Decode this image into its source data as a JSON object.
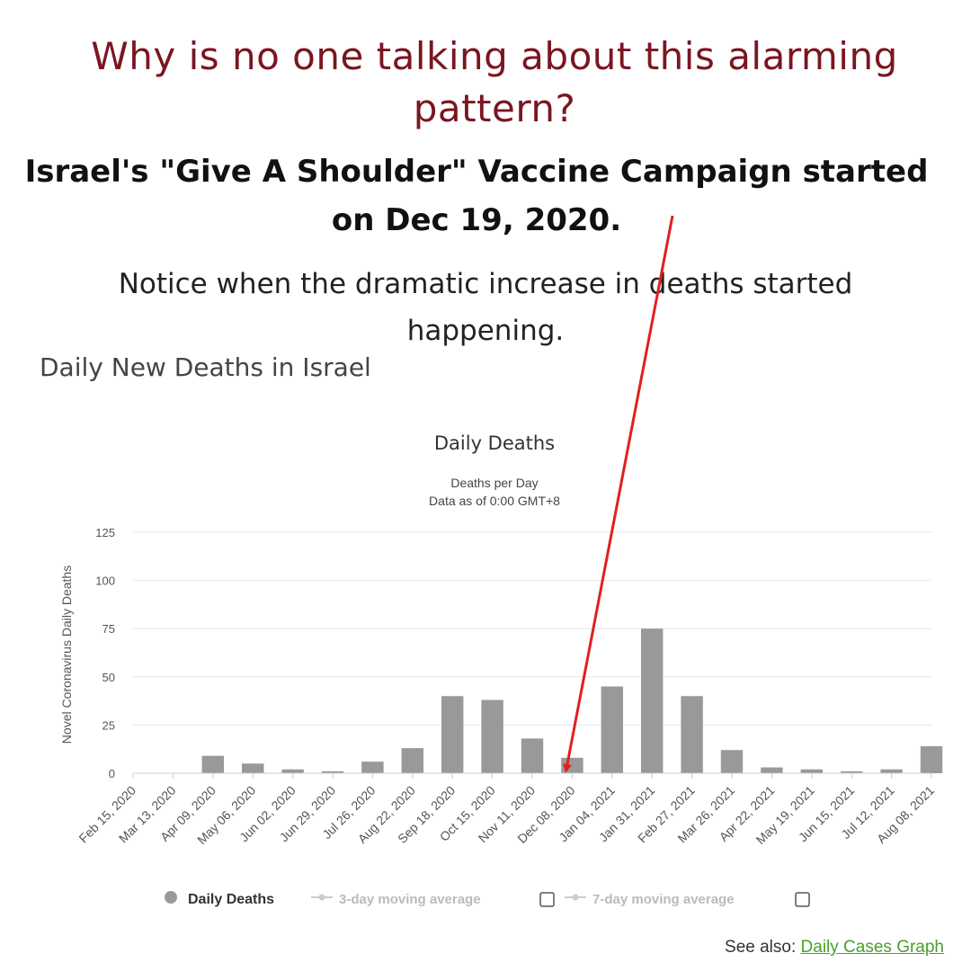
{
  "headline": "Why is no one talking about this alarming pattern?",
  "subhead": "Israel's \"Give A Shoulder\" Vaccine Campaign started on Dec 19, 2020.",
  "notice": "Notice when the dramatic increase in deaths started happening.",
  "chart_heading": "Daily New Deaths in Israel",
  "see_also": {
    "label": "See also:",
    "link_text": "Daily Cases Graph"
  },
  "colors": {
    "headline": "#7a1620",
    "bars": "#999999",
    "arrow": "#e02020",
    "link": "#4aa02c"
  },
  "chart_data": {
    "type": "bar",
    "title": "Daily Deaths",
    "subtitle": [
      "Deaths per Day",
      "Data as of 0:00 GMT+8"
    ],
    "ylabel": "Novel Coronavirus Daily Deaths",
    "xlabel": "",
    "ylim": [
      0,
      125
    ],
    "yticks": [
      0,
      25,
      50,
      75,
      100,
      125
    ],
    "x_tick_labels": [
      "Feb 15, 2020",
      "Mar 13, 2020",
      "Apr 09, 2020",
      "May 06, 2020",
      "Jun 02, 2020",
      "Jun 29, 2020",
      "Jul 26, 2020",
      "Aug 22, 2020",
      "Sep 18, 2020",
      "Oct 15, 2020",
      "Nov 11, 2020",
      "Dec 08, 2020",
      "Jan 04, 2021",
      "Jan 31, 2021",
      "Feb 27, 2021",
      "Mar 26, 2021",
      "Apr 22, 2021",
      "May 19, 2021",
      "Jun 15, 2021",
      "Jul 12, 2021",
      "Aug 08, 2021"
    ],
    "grid": true,
    "legend_position": "bottom",
    "legend": [
      {
        "name": "Daily Deaths",
        "active": true
      },
      {
        "name": "3-day moving average",
        "active": false
      },
      {
        "name": "7-day moving average",
        "active": false
      }
    ],
    "categories": [
      "Feb 15, 2020",
      "Mar 13, 2020",
      "Apr 09, 2020",
      "May 06, 2020",
      "Jun 02, 2020",
      "Jun 29, 2020",
      "Jul 26, 2020",
      "Aug 22, 2020",
      "Sep 18, 2020",
      "Oct 15, 2020",
      "Nov 11, 2020",
      "Dec 08, 2020",
      "Jan 04, 2021",
      "Jan 31, 2021",
      "Feb 27, 2021",
      "Mar 26, 2021",
      "Apr 22, 2021",
      "May 19, 2021",
      "Jun 15, 2021",
      "Jul 12, 2021",
      "Aug 08, 2021"
    ],
    "series": [
      {
        "name": "Daily Deaths",
        "values": [
          0,
          0,
          9,
          5,
          2,
          1,
          6,
          13,
          40,
          38,
          18,
          8,
          45,
          75,
          40,
          12,
          3,
          2,
          1,
          2,
          14
        ]
      }
    ]
  },
  "annotation": {
    "arrow_target": "Dec 19, 2020"
  }
}
